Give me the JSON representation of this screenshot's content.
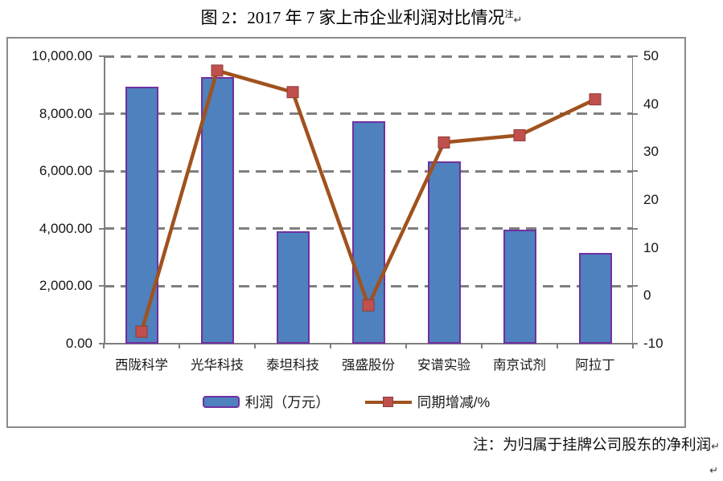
{
  "title": {
    "text": "图 2：2017 年 7 家上市企业利润对比情况",
    "superscript": "注",
    "paragraph_mark": "↵"
  },
  "chart_data": {
    "type": "combo-bar-line",
    "categories": [
      "西陇科学",
      "光华科技",
      "泰坦科技",
      "强盛股份",
      "安谱实验",
      "南京试剂",
      "阿拉丁"
    ],
    "series": [
      {
        "name": "利润（万元）",
        "type": "bar",
        "axis": "left",
        "values": [
          8950,
          9270,
          3920,
          7730,
          6330,
          3970,
          3160
        ]
      },
      {
        "name": "同期增减/%",
        "type": "line",
        "axis": "right",
        "values": [
          -7.5,
          47,
          42.5,
          -2,
          32,
          33.5,
          41
        ]
      }
    ],
    "left_axis": {
      "min": 0,
      "max": 10000,
      "step": 2000,
      "tick_labels": [
        "10,000.00",
        "8,000.00",
        "6,000.00",
        "4,000.00",
        "2,000.00",
        "0.00"
      ]
    },
    "right_axis": {
      "min": -10,
      "max": 50,
      "step": 10,
      "tick_labels": [
        "50",
        "40",
        "30",
        "20",
        "10",
        "0",
        "-10"
      ]
    },
    "grid": {
      "style": "dashed",
      "orientation": "horizontal"
    },
    "legend_position": "bottom"
  },
  "colors": {
    "bar_fill": "#4e81bd",
    "bar_border": "#7030a0",
    "line": "#a0521e",
    "marker_fill": "#c0504d",
    "marker_border": "#8e3b38",
    "gridline": "#7f7f7f",
    "axis": "#7f7f7f",
    "frame_border": "#8a8a8a"
  },
  "note": {
    "text": "注：为归属于挂牌公司股东的净利润",
    "paragraph_mark": "↵"
  },
  "trailing_paragraph_mark": "↵"
}
